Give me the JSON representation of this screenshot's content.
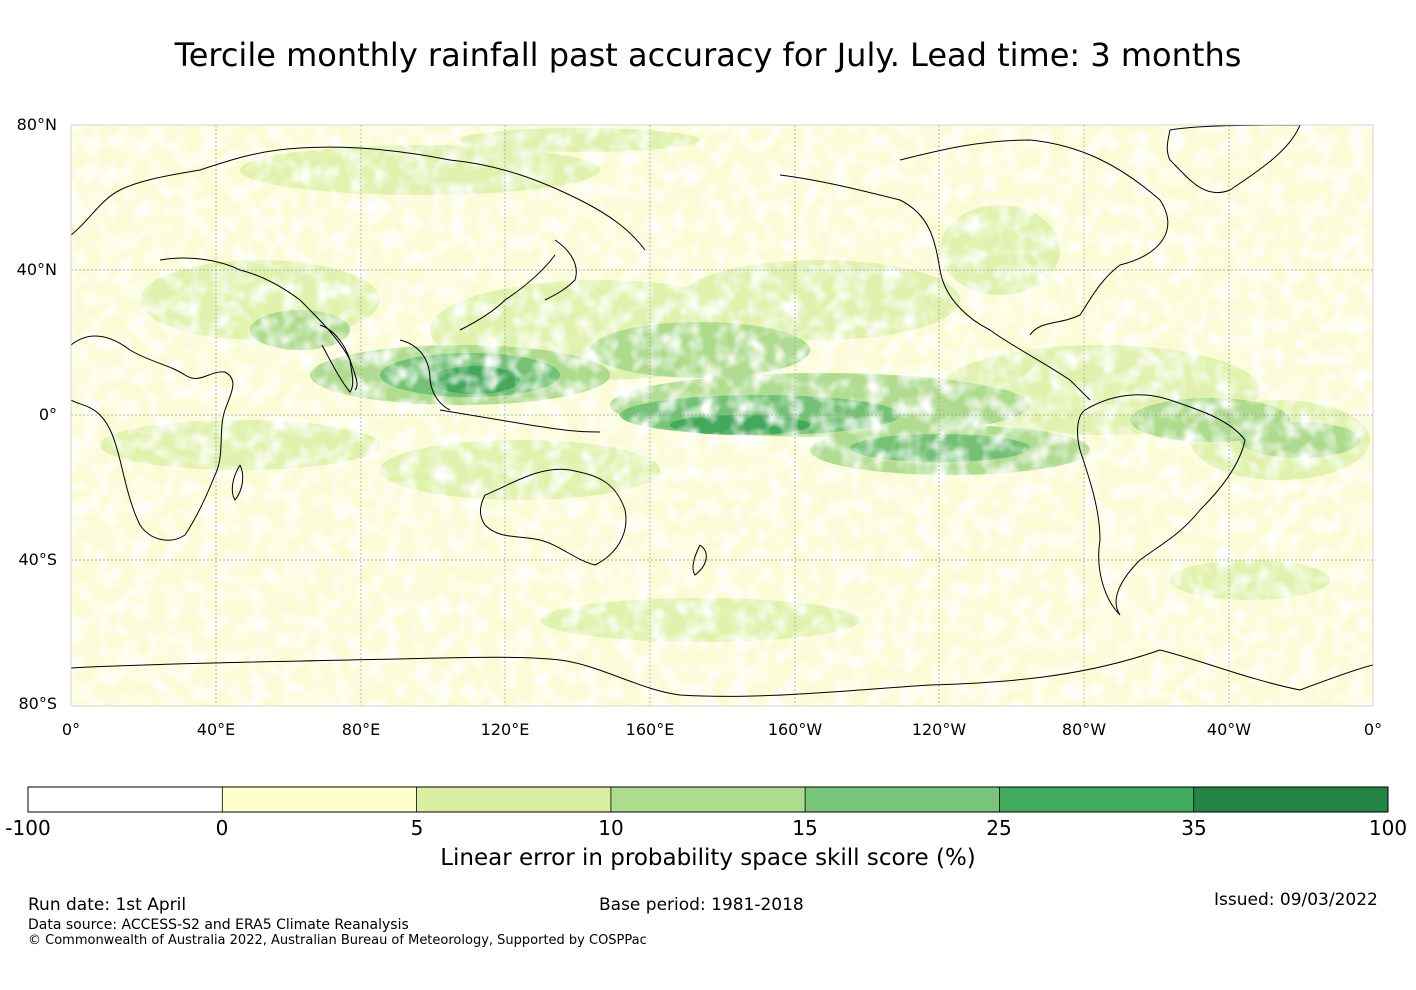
{
  "title": "Tercile monthly rainfall past accuracy for July. Lead time: 3 months",
  "map": {
    "lat_labels": [
      "80°N",
      "40°N",
      "0°",
      "40°S",
      "80°S"
    ],
    "lon_labels": [
      "0°",
      "40°E",
      "80°E",
      "120°E",
      "160°E",
      "160°W",
      "120°W",
      "80°W",
      "40°W",
      "0°"
    ],
    "gridline_color": "#999999"
  },
  "colorbar": {
    "ticks": [
      "-100",
      "0",
      "5",
      "10",
      "15",
      "25",
      "35",
      "100"
    ],
    "colors": [
      "#ffffff",
      "#ffffcc",
      "#d9f0a3",
      "#addd8e",
      "#78c679",
      "#41ab5d",
      "#238443"
    ],
    "label": "Linear error in probability space skill score (%)"
  },
  "footer": {
    "run_date": "Run date: 1st April",
    "base_period": "Base period: 1981-2018",
    "issued": "Issued: 09/03/2022",
    "data_source": "Data source: ACCESS-S2 and ERA5 Climate Reanalysis",
    "copyright": "© Commonwealth of Australia 2022, Australian Bureau of Meteorology, Supported by COSPPac"
  }
}
